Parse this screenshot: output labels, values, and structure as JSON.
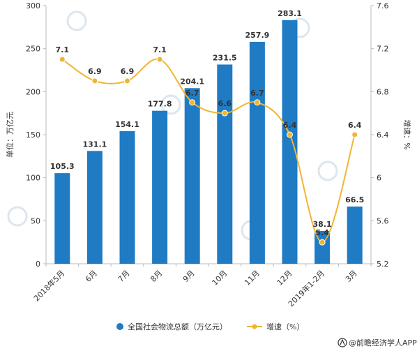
{
  "chart_data": {
    "type": "bar",
    "categories": [
      "2018年5月",
      "6月",
      "7月",
      "8月",
      "9月",
      "10月",
      "11月",
      "12月",
      "2019年1-2月",
      "3月"
    ],
    "series": [
      {
        "name": "全国社会物流总额（万亿元）",
        "type": "bar",
        "axis": "left",
        "values": [
          105.3,
          131.1,
          154.1,
          177.8,
          204.1,
          231.5,
          257.9,
          283.1,
          38.1,
          66.5
        ],
        "labels": [
          "105.3",
          "131.1",
          "154.1",
          "177.8",
          "204.1",
          "231.5",
          "257.9",
          "283.1",
          "38.1",
          "66.5"
        ]
      },
      {
        "name": "增速（%）",
        "type": "line",
        "axis": "right",
        "values": [
          7.1,
          6.9,
          6.9,
          7.1,
          6.7,
          6.6,
          6.7,
          6.4,
          5.4,
          6.4
        ],
        "labels": [
          "7.1",
          "6.9",
          "6.9",
          "7.1",
          "6.7",
          "6.6",
          "6.7",
          "6.4",
          "5.4",
          "6.4"
        ]
      }
    ],
    "ylabel": "单位：万亿元",
    "y2label": "增速：%",
    "ylim": [
      0,
      300
    ],
    "y2lim": [
      5.2,
      7.6
    ],
    "yticks": [
      "0",
      "50",
      "100",
      "150",
      "200",
      "250",
      "300"
    ],
    "y2ticks": [
      "5.2",
      "5.6",
      "6",
      "6.4",
      "6.8",
      "7.2",
      "7.6"
    ],
    "grid": false,
    "legend_position": "bottom",
    "colors": {
      "bar": "#1f7bc4",
      "line": "#f0b531",
      "axis": "#bbbbbb"
    }
  },
  "footer": {
    "source": "@前瞻经济学人APP"
  }
}
